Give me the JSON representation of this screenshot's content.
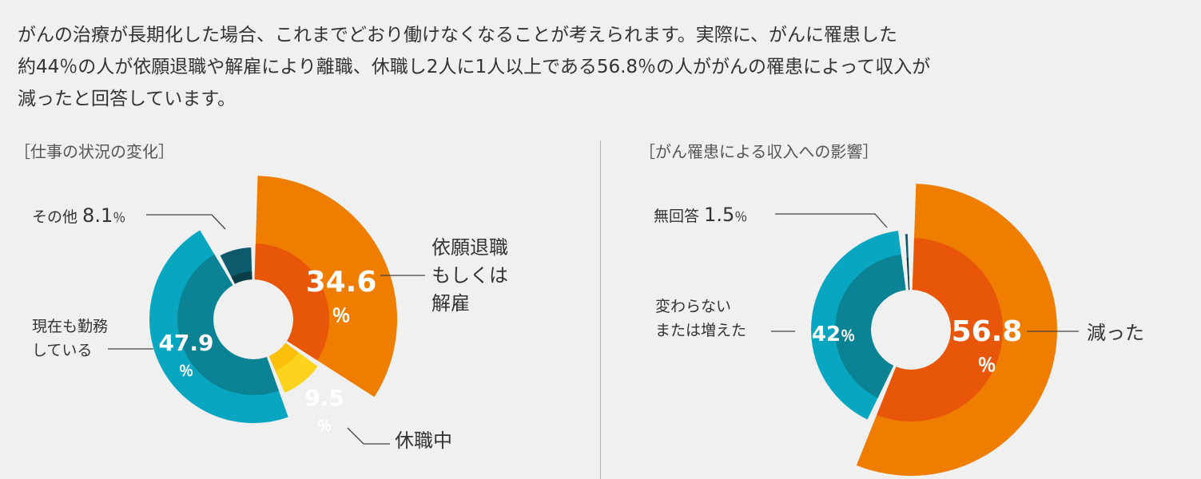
{
  "intro": [
    "がんの治療が長期化した場合、これまでどおり働けなくなることが考えられます。実際に、がんに罹患した",
    "約44％の人が依願退職や解雇により離職、休職し2人に1人以上である56.8％の人ががんの罹患によって収入が",
    "減ったと回答しています。"
  ],
  "chart_data": [
    {
      "type": "pie",
      "title": "［仕事の状況の変化］",
      "slices": [
        {
          "label": "依願退職もしくは解雇",
          "label_lines": [
            "依願退職",
            "もしくは",
            "解雇"
          ],
          "value": 34.6,
          "display": "34.6",
          "color": "#ef7d00",
          "inner_color": "#e85709"
        },
        {
          "label": "休職中",
          "label_lines": [
            "休職中"
          ],
          "value": 9.5,
          "display": "9.5",
          "color": "#fcd41e",
          "inner_color": "#fbc00b"
        },
        {
          "label": "現在も勤務している",
          "label_lines": [
            "現在も勤務",
            "している"
          ],
          "value": 47.9,
          "display": "47.9",
          "color": "#08a6c0",
          "inner_color": "#0b8394"
        },
        {
          "label": "その他",
          "label_lines": [
            "その他"
          ],
          "value": 8.1,
          "display": "8.1",
          "color": "#0e5a6d",
          "inner_color": "#073d46"
        }
      ],
      "unit": "％"
    },
    {
      "type": "pie",
      "title": "［がん罹患による収入への影響］",
      "slices": [
        {
          "label": "減った",
          "label_lines": [
            "減った"
          ],
          "value": 56.8,
          "display": "56.8",
          "color": "#ef7d00",
          "inner_color": "#e85709"
        },
        {
          "label": "変わらないまたは増えた",
          "label_lines": [
            "変わらない",
            "または増えた"
          ],
          "value": 42,
          "display": "42",
          "color": "#08a6c0",
          "inner_color": "#0b8394"
        },
        {
          "label": "無回答",
          "label_lines": [
            "無回答"
          ],
          "value": 1.5,
          "display": "1.5",
          "color": "#0e5a6d",
          "inner_color": "#073d46"
        }
      ],
      "unit": "％"
    }
  ]
}
